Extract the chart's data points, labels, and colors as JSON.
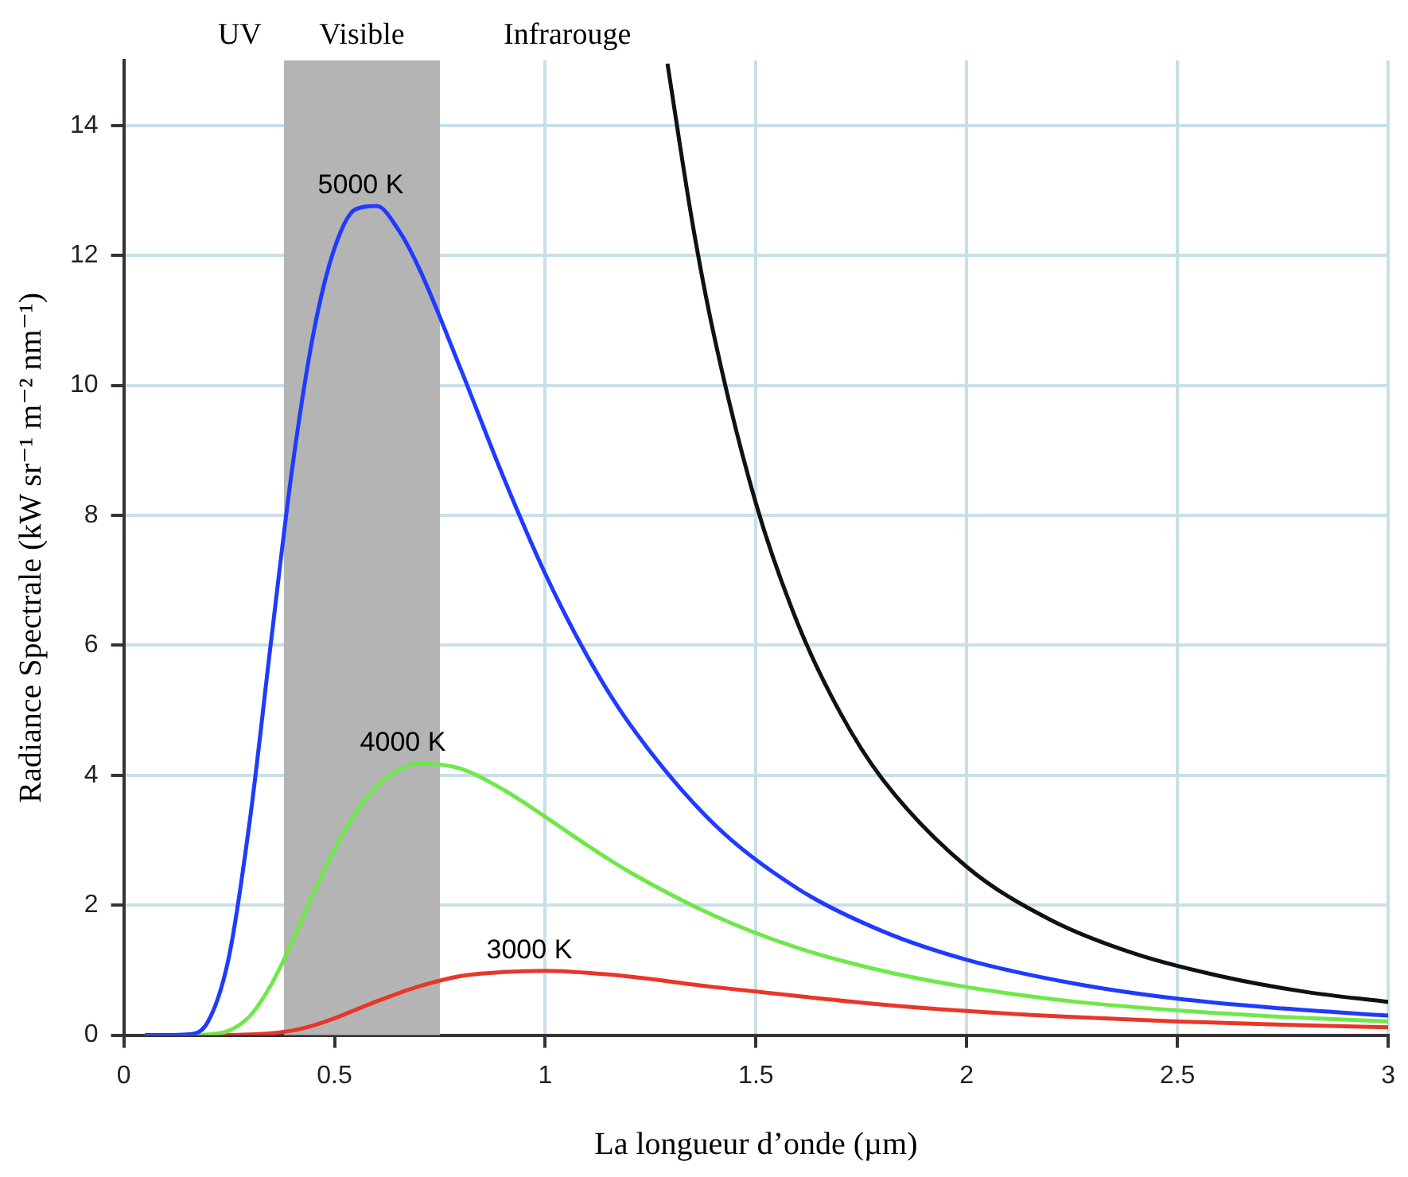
{
  "chart_data": {
    "type": "line",
    "xlabel": "La longueur d’onde (µm)",
    "ylabel": "Radiance Spectrale (kW sr⁻¹ m⁻² nm⁻¹)",
    "xlim": [
      0,
      3
    ],
    "ylim": [
      0,
      15
    ],
    "xticks": [
      0,
      0.5,
      1,
      1.5,
      2,
      2.5,
      3
    ],
    "yticks": [
      0,
      2,
      4,
      6,
      8,
      10,
      12,
      14
    ],
    "grid": true,
    "legend": false,
    "marker": "none",
    "bands": [
      {
        "axis": "x",
        "from": 0.38,
        "to": 0.75,
        "label": "Visible",
        "color": "#b4b4b4"
      }
    ],
    "annotations": [
      "UV",
      "Infrarouge"
    ],
    "series": [
      {
        "name": "5000 K",
        "color": "#1f3bff",
        "x": [
          0.05,
          0.1,
          0.15,
          0.2,
          0.25,
          0.3,
          0.35,
          0.4,
          0.45,
          0.5,
          0.55,
          0.6,
          0.65,
          0.7,
          0.8,
          0.9,
          1.0,
          1.1,
          1.2,
          1.4,
          1.6,
          1.8,
          2.0,
          2.25,
          2.5,
          2.75,
          3.0
        ],
        "values": [
          0,
          0,
          0.01,
          0.21,
          1.22,
          3.35,
          6.09,
          8.74,
          10.8,
          12.11,
          12.71,
          12.76,
          12.41,
          11.81,
          10.24,
          8.6,
          7.1,
          5.83,
          4.79,
          3.25,
          2.25,
          1.6,
          1.16,
          0.8,
          0.56,
          0.41,
          0.3
        ]
      },
      {
        "name": "4000 K",
        "color": "#6fe84a",
        "x": [
          0.05,
          0.15,
          0.2,
          0.25,
          0.3,
          0.35,
          0.4,
          0.45,
          0.5,
          0.55,
          0.6,
          0.65,
          0.7,
          0.8,
          0.9,
          1.0,
          1.1,
          1.2,
          1.4,
          1.6,
          1.8,
          2.0,
          2.25,
          2.5,
          2.75,
          3.0
        ],
        "values": [
          0,
          0,
          0.01,
          0.07,
          0.3,
          0.78,
          1.44,
          2.18,
          2.86,
          3.42,
          3.82,
          4.07,
          4.18,
          4.1,
          3.78,
          3.36,
          2.92,
          2.51,
          1.84,
          1.34,
          0.99,
          0.74,
          0.52,
          0.38,
          0.28,
          0.21
        ]
      },
      {
        "name": "3000 K",
        "color": "#e8372a",
        "x": [
          0.05,
          0.25,
          0.3,
          0.35,
          0.4,
          0.45,
          0.5,
          0.55,
          0.6,
          0.65,
          0.7,
          0.8,
          0.9,
          1.0,
          1.1,
          1.2,
          1.4,
          1.6,
          1.8,
          2.0,
          2.25,
          2.5,
          2.75,
          3.0
        ],
        "values": [
          0,
          0,
          0.01,
          0.03,
          0.07,
          0.15,
          0.26,
          0.39,
          0.52,
          0.64,
          0.75,
          0.91,
          0.97,
          0.99,
          0.96,
          0.9,
          0.74,
          0.6,
          0.47,
          0.37,
          0.28,
          0.21,
          0.16,
          0.12
        ]
      },
      {
        "color": "#111111",
        "x": [
          1.29,
          1.35,
          1.4,
          1.5,
          1.6,
          1.7,
          1.8,
          2.0,
          2.2,
          2.4,
          2.6,
          2.8,
          3.0
        ],
        "values": [
          14.95,
          12.47,
          10.78,
          8.18,
          6.32,
          4.96,
          3.94,
          2.59,
          1.77,
          1.25,
          0.91,
          0.67,
          0.51
        ]
      }
    ]
  }
}
